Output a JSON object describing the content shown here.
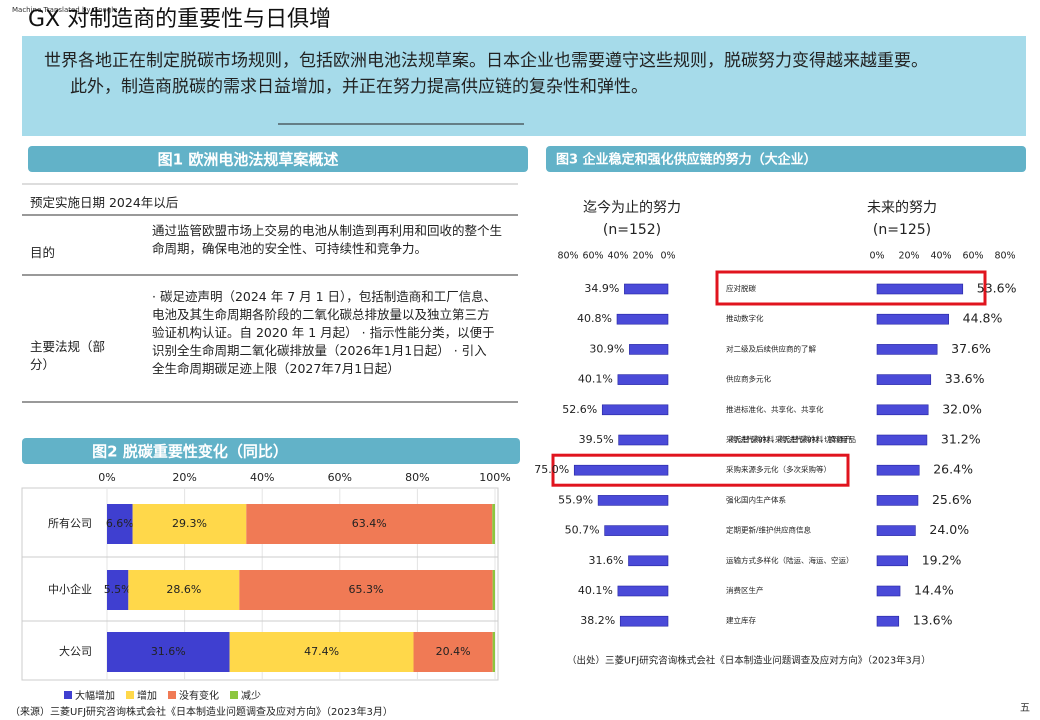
{
  "header": {
    "note": "Machine Translated by Google",
    "title": "GX 对制造商的重要性与日俱增"
  },
  "summary": {
    "lines": [
      "世界各地正在制定脱碳市场规则，包括欧洲电池法规草案。日本企业也需要遵守这些规则，脱碳努力变得越来越重要。",
      "此外，制造商脱碳的需求日益增加，并正在努力提高供应链的复杂性和弹性。"
    ]
  },
  "figure1": {
    "title": "图1 欧洲电池法规草案概述",
    "table": {
      "rows": [
        [
          "预定实施日期 2024年以后"
        ],
        [
          "目的",
          "通过监管欧盟市场上交易的电池从制造到再利用和回收的整个生命周期，确保电池的安全性、可持续性和竞争力。"
        ],
        [
          "主要法规（部分）",
          "· 碳足迹声明（2024 年 7 月 1 日），包括制造商和工厂信息、电池及其生命周期各阶段的二氧化碳总排放量以及独立第三方验证机构认证。自 2020 年 1 月起） · 指示性能分类，以便于识别全生命周期二氧化碳排放量（2026年1月1日起） · 引入全生命周期碳足迹上限（2027年7月1日起）"
        ]
      ]
    }
  },
  "chart_data": [
    {
      "type": "stackedbar",
      "title": "图2 脱碳重要性变化（同比）",
      "categories": [
        "所有公司",
        "中小企业",
        "大公司"
      ],
      "series": [
        {
          "name": "大幅增加",
          "color": "#3f3fd0",
          "values": [
            6.6,
            5.5,
            31.6
          ],
          "value_labels": [
            "6.6%",
            "5.5%",
            "31.6%"
          ]
        },
        {
          "name": "增加",
          "color": "#ffd84a",
          "values": [
            29.3,
            28.6,
            47.4
          ],
          "value_labels": [
            "29.3%",
            "28.6%",
            "47.4%"
          ]
        },
        {
          "name": "没有变化",
          "color": "#f07a55",
          "values": [
            63.4,
            65.3,
            20.4
          ],
          "value_labels": [
            "63.4%",
            "65.3%",
            "20.4%"
          ]
        },
        {
          "name": "减少",
          "color": "#8dc63f",
          "values": [
            0.7,
            0.6,
            0.6
          ]
        }
      ],
      "xlim": [
        0,
        100
      ],
      "xticks": [
        {
          "value": 0,
          "label": "0%"
        },
        {
          "value": 20,
          "label": "20%"
        },
        {
          "value": 40,
          "label": "40%"
        },
        {
          "value": 60,
          "label": "60%"
        },
        {
          "value": 80,
          "label": "80%"
        },
        {
          "value": 100,
          "label": "100%"
        }
      ],
      "grid": true,
      "note": "（来源）三菱UFJ研究咨询株式会社《日本制造业问题调查及应对方向》（2023年3月）"
    },
    {
      "type": "butterfly",
      "title": "图3 企业稳定和强化供应链的努力（大企业）",
      "categories": [
        "应对脱碳",
        "推动数字化",
        "对二级及后续供应商的了解",
        "供应商多元化",
        "推进标准化、共享化、共享化",
        "采购无法替代采购的材料、采购无法替代采购的材料、切换到通用产品",
        "采购来源多元化（多次采购等）",
        "强化国内生产体系",
        "定期更新/维护供应商信息",
        "运输方式多样化（陆运、海运、空运）",
        "消费区生产",
        "建立库存"
      ],
      "series": [
        {
          "name": "迄今为止的努力",
          "subtitle": "(n=152)",
          "color": "#4a4ad8",
          "values": [
            34.9,
            40.8,
            30.9,
            40.1,
            52.6,
            39.5,
            75.0,
            55.9,
            50.7,
            31.6,
            40.1,
            38.2
          ],
          "value_labels": [
            "34.9%",
            "40.8%",
            "30.9%",
            "40.1%",
            "52.6%",
            "39.5%",
            "75.0%",
            "55.9%",
            "50.7%",
            "31.6%",
            "40.1%",
            "38.2%"
          ],
          "xlim": [
            0,
            80
          ],
          "xticks": [
            {
              "value": 80,
              "label": "80%"
            },
            {
              "value": 60,
              "label": "60%"
            },
            {
              "value": 40,
              "label": "40%"
            },
            {
              "value": 20,
              "label": "20%"
            },
            {
              "value": 0,
              "label": "0%"
            }
          ]
        },
        {
          "name": "未来的努力",
          "subtitle": "(n=125)",
          "color": "#4a4ad8",
          "values": [
            53.6,
            44.8,
            37.6,
            33.6,
            32.0,
            31.2,
            26.4,
            25.6,
            24.0,
            19.2,
            14.4,
            13.6
          ],
          "value_labels": [
            "53.6%",
            "44.8%",
            "37.6%",
            "33.6%",
            "32.0%",
            "31.2%",
            "26.4%",
            "25.6%",
            "24.0%",
            "19.2%",
            "14.4%",
            "13.6%"
          ],
          "xlim": [
            0,
            80
          ],
          "xticks": [
            {
              "value": 0,
              "label": "0%"
            },
            {
              "value": 20,
              "label": "20%"
            },
            {
              "value": 40,
              "label": "40%"
            },
            {
              "value": 60,
              "label": "60%"
            },
            {
              "value": 80,
              "label": "80%"
            }
          ]
        }
      ],
      "note": "（出处）三菱UFJ研究咨询株式会社《日本制造业问题调查及应对方向》（2023年3月）"
    }
  ],
  "footer": {
    "page": "五"
  }
}
